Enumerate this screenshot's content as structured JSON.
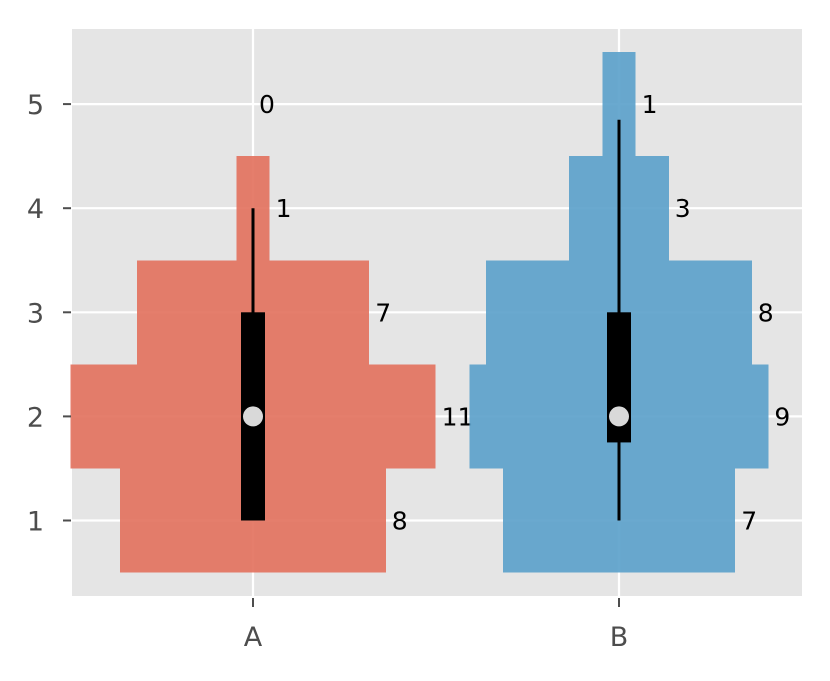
{
  "chart_data": {
    "type": "histogram-violin with boxplot",
    "title": "",
    "xlabel": "",
    "ylabel": "",
    "categories": [
      "A",
      "B"
    ],
    "y_ticks": [
      1,
      2,
      3,
      4,
      5
    ],
    "ylim": [
      0.25,
      5.7
    ],
    "grid": true,
    "series": [
      {
        "category": "A",
        "color": "#e3735f",
        "bins": [
          {
            "y": 1,
            "count": 8
          },
          {
            "y": 2,
            "count": 11
          },
          {
            "y": 3,
            "count": 7
          },
          {
            "y": 4,
            "count": 1
          },
          {
            "y": 5,
            "count": 0
          }
        ],
        "box": {
          "q1": 1,
          "median": 2,
          "q3": 3,
          "whisker_low": 1,
          "whisker_high": 4
        }
      },
      {
        "category": "B",
        "color": "#5da2cb",
        "bins": [
          {
            "y": 1,
            "count": 7
          },
          {
            "y": 2,
            "count": 9
          },
          {
            "y": 3,
            "count": 8
          },
          {
            "y": 4,
            "count": 3
          },
          {
            "y": 5,
            "count": 1
          }
        ],
        "box": {
          "q1": 1.75,
          "median": 2,
          "q3": 3,
          "whisker_low": 1,
          "whisker_high": 4.85
        }
      }
    ]
  }
}
